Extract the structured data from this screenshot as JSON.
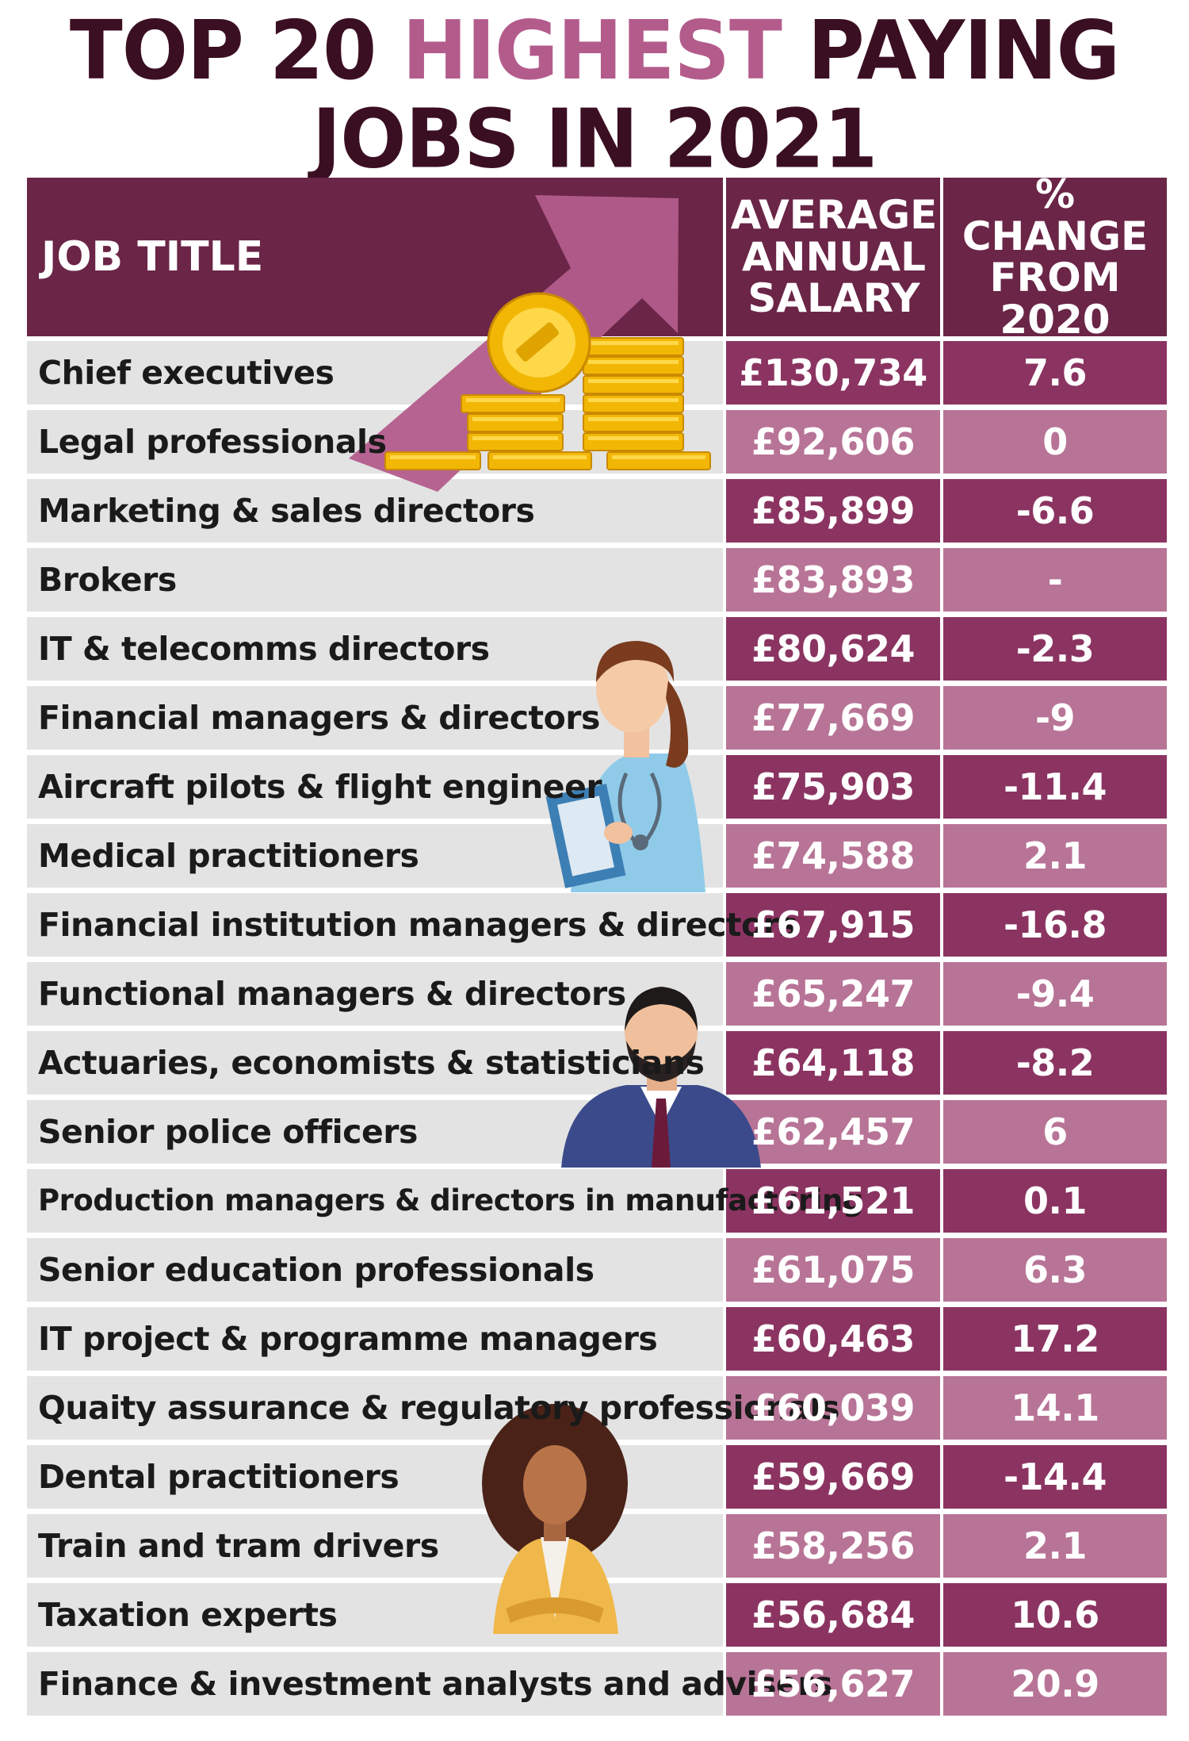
{
  "title": {
    "part1": "TOP 20",
    "highlight": "HIGHEST",
    "part2": "PAYING",
    "line2": "JOBS IN 2021"
  },
  "colors": {
    "title_dark": "#3b0f22",
    "title_highlight": "#b35c8c",
    "header_bg": "#6a2547",
    "row_dark": "#8b3461",
    "row_light": "#b87496",
    "job_cell_bg": "#e3e3e3"
  },
  "chart_data": {
    "type": "table",
    "columns": [
      "JOB TITLE",
      "AVERAGE ANNUAL SALARY",
      "% CHANGE FROM 2020"
    ],
    "header": {
      "job_title": "JOB TITLE",
      "salary_lines": [
        "AVERAGE",
        "ANNUAL",
        "SALARY"
      ],
      "change_lines": [
        "% CHANGE",
        "FROM",
        "2020"
      ]
    },
    "rows": [
      {
        "job": "Chief executives",
        "salary": "£130,734",
        "change": "7.6"
      },
      {
        "job": "Legal professionals",
        "salary": "£92,606",
        "change": "0"
      },
      {
        "job": "Marketing & sales directors",
        "salary": "£85,899",
        "change": "-6.6"
      },
      {
        "job": "Brokers",
        "salary": "£83,893",
        "change": "-"
      },
      {
        "job": "IT & telecomms directors",
        "salary": "£80,624",
        "change": "-2.3"
      },
      {
        "job": "Financial managers & directors",
        "salary": "£77,669",
        "change": "-9"
      },
      {
        "job": "Aircraft pilots & flight engineer",
        "salary": "£75,903",
        "change": "-11.4"
      },
      {
        "job": "Medical practitioners",
        "salary": "£74,588",
        "change": "2.1"
      },
      {
        "job": "Financial institution managers & directors",
        "salary": "£67,915",
        "change": "-16.8"
      },
      {
        "job": "Functional managers & directors",
        "salary": "£65,247",
        "change": "-9.4"
      },
      {
        "job": "Actuaries, economists & statisticians",
        "salary": "£64,118",
        "change": "-8.2"
      },
      {
        "job": "Senior police officers",
        "salary": "£62,457",
        "change": "6"
      },
      {
        "job": "Production managers & directors in manufacturing",
        "salary": "£61,521",
        "change": "0.1"
      },
      {
        "job": "Senior education professionals",
        "salary": "£61,075",
        "change": "6.3"
      },
      {
        "job": "IT project & programme managers",
        "salary": "£60,463",
        "change": "17.2"
      },
      {
        "job": "Quaity assurance & regulatory professionals",
        "salary": "£60,039",
        "change": "14.1"
      },
      {
        "job": "Dental practitioners",
        "salary": "£59,669",
        "change": "-14.4"
      },
      {
        "job": "Train and tram drivers",
        "salary": "£58,256",
        "change": "2.1"
      },
      {
        "job": "Taxation experts",
        "salary": "£56,684",
        "change": "10.6"
      },
      {
        "job": "Finance & investment analysts and advisers",
        "salary": "£56,627",
        "change": "20.9"
      }
    ]
  },
  "illustrations": [
    "arrow-icon",
    "gold-coins-icon",
    "nurse-icon",
    "businessman-icon",
    "businesswoman-icon"
  ]
}
